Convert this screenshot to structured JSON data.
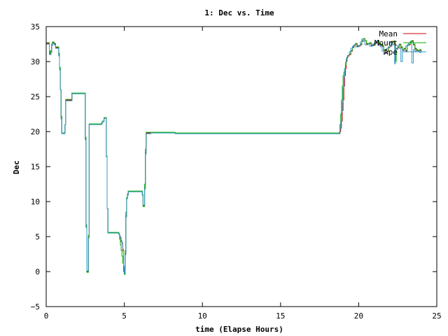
{
  "chart_data": {
    "type": "line",
    "title": "1: Dec vs. Time",
    "xlabel": "time (Elapse Hours)",
    "ylabel": "Dec",
    "xlim": [
      0,
      25
    ],
    "ylim": [
      -5,
      35
    ],
    "xticks": [
      0,
      5,
      10,
      15,
      20,
      25
    ],
    "yticks": [
      -5,
      0,
      5,
      10,
      15,
      20,
      25,
      30,
      35
    ],
    "xtick_labels": [
      "0",
      "5",
      "10",
      "15",
      "20",
      "25"
    ],
    "ytick_labels": [
      "−5",
      "0",
      "5",
      "10",
      "15",
      "20",
      "25",
      "30",
      "35"
    ],
    "grid": false,
    "legend_position": "top-right",
    "series": [
      {
        "name": "Mean",
        "color": "#cc0000",
        "x": [
          0,
          0.1,
          0.2,
          0.25,
          0.3,
          0.35,
          0.4,
          0.5,
          0.6,
          0.7,
          0.8,
          0.85,
          0.9,
          0.95,
          1.0,
          1.05,
          1.1,
          1.15,
          1.2,
          1.25,
          1.3,
          1.35,
          1.6,
          1.65,
          2.4,
          2.45,
          2.5,
          2.55,
          2.6,
          2.65,
          2.7,
          2.75,
          2.8,
          3.5,
          3.55,
          3.6,
          3.65,
          3.7,
          3.75,
          3.8,
          3.85,
          3.9,
          3.95,
          4.0,
          4.05,
          4.6,
          4.65,
          4.7,
          4.75,
          4.8,
          4.85,
          4.9,
          4.95,
          5.0,
          5.05,
          5.1,
          5.15,
          5.2,
          5.25,
          5.3,
          5.35,
          5.4,
          5.5,
          5.55,
          6.1,
          6.15,
          6.2,
          6.25,
          6.3,
          6.35,
          6.4,
          6.45,
          6.5,
          6.55,
          6.6,
          6.65,
          6.7,
          8.2,
          8.25,
          12.1,
          12.15,
          18.7,
          18.75,
          18.8,
          18.85,
          18.9,
          18.95,
          19.0,
          19.05,
          19.1,
          19.15,
          19.2,
          19.25,
          19.3,
          19.4,
          19.5,
          19.6,
          19.7,
          19.8,
          19.9,
          20.0,
          20.1,
          20.2,
          20.3,
          20.4,
          20.5,
          20.6,
          20.7,
          20.8,
          20.9,
          21.0,
          21.1,
          21.2,
          21.3,
          21.4,
          21.5,
          21.6,
          21.7,
          21.8,
          21.9,
          22.0,
          22.1,
          22.2,
          22.3,
          22.35,
          22.4,
          22.5,
          22.6,
          22.7,
          22.8,
          22.9,
          23.0,
          23.1,
          23.2,
          23.3,
          23.4,
          23.5,
          23.6,
          23.7,
          23.8,
          23.9,
          24.0
        ],
        "y": [
          32.6,
          32.6,
          31.2,
          31.0,
          31.4,
          32.4,
          32.7,
          32.5,
          32.0,
          32.0,
          31.0,
          29.0,
          26.0,
          22.0,
          19.8,
          19.8,
          19.8,
          19.8,
          21.0,
          24.5,
          24.5,
          24.5,
          24.5,
          25.5,
          25.5,
          25.5,
          19.0,
          6.5,
          0.0,
          0.0,
          5.0,
          21.0,
          21.0,
          21.0,
          21.3,
          21.5,
          21.5,
          22.0,
          22.0,
          22.0,
          16.5,
          9.0,
          5.5,
          5.5,
          5.5,
          5.5,
          5.3,
          5.0,
          4.8,
          4.3,
          4.0,
          3.0,
          0.5,
          -0.3,
          2.5,
          8.0,
          10.5,
          11.0,
          11.5,
          11.5,
          11.5,
          11.5,
          11.5,
          11.5,
          11.5,
          11.0,
          9.4,
          9.4,
          12.0,
          17.0,
          19.8,
          19.8,
          19.8,
          19.8,
          19.8,
          19.8,
          19.9,
          19.9,
          19.8,
          19.8,
          19.7,
          19.7,
          19.7,
          20.0,
          20.5,
          21.5,
          23.0,
          24.5,
          26.5,
          28.0,
          29.0,
          30.0,
          30.5,
          30.8,
          31.0,
          31.5,
          32.0,
          32.3,
          32.5,
          32.2,
          32.2,
          32.4,
          32.9,
          33.3,
          33.0,
          32.5,
          32.5,
          32.6,
          32.3,
          32.3,
          32.6,
          32.8,
          33.0,
          32.5,
          32.4,
          32.2,
          31.6,
          31.2,
          31.4,
          32.0,
          32.2,
          32.8,
          32.8,
          32.5,
          30.2,
          31.8,
          32.0,
          32.4,
          32.0,
          31.6,
          31.8,
          31.5,
          32.3,
          32.4,
          32.8,
          32.9,
          32.4,
          31.8,
          31.6,
          31.5,
          31.6,
          31.4
        ]
      },
      {
        "name": "Mount",
        "color": "#00aa00",
        "x": [
          0,
          0.1,
          0.2,
          0.25,
          0.3,
          0.35,
          0.4,
          0.5,
          0.6,
          0.7,
          0.8,
          0.85,
          0.9,
          0.95,
          1.0,
          1.05,
          1.1,
          1.15,
          1.2,
          1.25,
          1.3,
          1.35,
          1.6,
          1.65,
          2.4,
          2.45,
          2.5,
          2.55,
          2.6,
          2.65,
          2.7,
          2.75,
          2.8,
          3.5,
          3.55,
          3.6,
          3.65,
          3.7,
          3.75,
          3.8,
          3.85,
          3.9,
          3.95,
          4.0,
          4.05,
          4.6,
          4.65,
          4.7,
          4.75,
          4.8,
          4.85,
          4.9,
          4.95,
          5.0,
          5.05,
          5.1,
          5.15,
          5.2,
          5.25,
          5.3,
          5.35,
          5.4,
          5.5,
          5.55,
          6.1,
          6.15,
          6.2,
          6.25,
          6.3,
          6.35,
          6.4,
          6.45,
          6.5,
          6.55,
          6.6,
          6.65,
          6.7,
          8.2,
          8.25,
          12.1,
          12.15,
          18.7,
          18.75,
          18.8,
          18.85,
          18.9,
          18.95,
          19.0,
          19.05,
          19.1,
          19.15,
          19.2,
          19.25,
          19.3,
          19.4,
          19.5,
          19.6,
          19.7,
          19.8,
          19.9,
          20.0,
          20.1,
          20.2,
          20.3,
          20.4,
          20.5,
          20.6,
          20.7,
          20.8,
          20.9,
          21.0,
          21.1,
          21.2,
          21.3,
          21.4,
          21.5,
          21.6,
          21.7,
          21.8,
          21.9,
          22.0,
          22.1,
          22.2,
          22.3,
          22.35,
          22.4,
          22.5,
          22.6,
          22.7,
          22.8,
          22.9,
          23.0,
          23.1,
          23.2,
          23.3,
          23.4,
          23.5,
          23.6,
          23.7,
          23.8,
          23.9,
          24.0
        ],
        "y": [
          32.7,
          32.7,
          31.5,
          31.2,
          31.6,
          32.5,
          32.8,
          32.6,
          32.1,
          32.1,
          31.2,
          29.2,
          26.0,
          22.2,
          19.8,
          19.8,
          19.8,
          19.8,
          21.0,
          24.6,
          24.6,
          24.6,
          24.6,
          25.5,
          25.5,
          25.5,
          19.2,
          6.3,
          -0.1,
          -0.1,
          5.2,
          21.1,
          21.1,
          21.1,
          21.3,
          21.5,
          21.5,
          22.0,
          22.0,
          22.0,
          16.5,
          9.0,
          5.6,
          5.6,
          5.6,
          5.6,
          5.4,
          4.6,
          3.8,
          3.0,
          2.2,
          1.2,
          0.0,
          -0.4,
          3.0,
          8.5,
          10.6,
          11.1,
          11.5,
          11.5,
          11.5,
          11.5,
          11.5,
          11.5,
          11.5,
          11.0,
          9.3,
          9.3,
          12.5,
          17.5,
          19.9,
          19.9,
          19.9,
          19.9,
          19.9,
          19.9,
          19.9,
          19.9,
          19.8,
          19.8,
          19.8,
          19.8,
          19.8,
          21.0,
          22.5,
          24.5,
          26.5,
          28.0,
          28.5,
          29.0,
          29.5,
          30.2,
          30.6,
          30.9,
          31.1,
          31.6,
          32.1,
          32.4,
          32.6,
          32.3,
          32.3,
          32.5,
          33.0,
          33.3,
          33.0,
          32.6,
          32.6,
          32.7,
          32.4,
          32.4,
          32.7,
          32.9,
          33.0,
          32.6,
          32.5,
          32.3,
          31.7,
          31.3,
          31.5,
          32.1,
          32.3,
          32.9,
          32.9,
          32.6,
          30.0,
          31.9,
          32.1,
          32.5,
          32.1,
          31.7,
          31.9,
          31.6,
          32.4,
          32.5,
          32.9,
          33.0,
          32.5,
          31.9,
          31.7,
          31.6,
          31.7,
          31.5
        ]
      },
      {
        "name": "Ape",
        "color": "#3399cc",
        "x": [
          0,
          0.1,
          0.2,
          0.25,
          0.3,
          0.35,
          0.4,
          0.5,
          0.6,
          0.7,
          0.8,
          0.85,
          0.9,
          0.95,
          1.0,
          1.05,
          1.1,
          1.15,
          1.2,
          1.25,
          1.3,
          1.35,
          1.6,
          1.65,
          2.4,
          2.45,
          2.5,
          2.55,
          2.6,
          2.65,
          2.7,
          2.75,
          2.8,
          3.5,
          3.55,
          3.6,
          3.65,
          3.7,
          3.75,
          3.8,
          3.85,
          3.9,
          3.95,
          4.0,
          4.05,
          4.6,
          4.65,
          4.7,
          4.75,
          4.8,
          4.85,
          4.9,
          4.95,
          5.0,
          5.05,
          5.1,
          5.15,
          5.2,
          5.25,
          5.3,
          5.35,
          5.4,
          5.5,
          5.55,
          6.1,
          6.15,
          6.2,
          6.25,
          6.3,
          6.35,
          6.4,
          6.45,
          6.5,
          6.55,
          6.6,
          6.65,
          6.7,
          8.2,
          8.25,
          18.7,
          18.75,
          18.8,
          18.85,
          18.9,
          18.95,
          19.0,
          19.05,
          19.1,
          19.15,
          19.2,
          19.25,
          19.3,
          19.4,
          19.5,
          19.6,
          19.7,
          19.8,
          19.9,
          20.0,
          20.1,
          20.2,
          20.3,
          20.4,
          20.5,
          20.6,
          20.7,
          20.8,
          20.9,
          21.0,
          21.1,
          21.2,
          21.3,
          21.4,
          21.5,
          21.6,
          21.7,
          21.8,
          21.9,
          22.0,
          22.1,
          22.2,
          22.3,
          22.35,
          22.4,
          22.5,
          22.6,
          22.7,
          22.8,
          22.9,
          23.0,
          23.1,
          23.2,
          23.3,
          23.4,
          23.5,
          23.6,
          23.7,
          23.8,
          23.9,
          24.0
        ],
        "y": [
          32.5,
          32.5,
          31.0,
          31.0,
          31.3,
          32.3,
          32.6,
          32.4,
          31.9,
          31.9,
          30.8,
          28.8,
          26.0,
          21.8,
          19.7,
          19.7,
          19.7,
          19.7,
          21.0,
          24.4,
          24.4,
          24.4,
          24.4,
          25.4,
          25.4,
          25.4,
          18.8,
          6.7,
          0.1,
          0.1,
          4.8,
          21.0,
          21.0,
          21.0,
          21.2,
          21.4,
          21.4,
          21.9,
          21.9,
          21.9,
          16.4,
          9.0,
          5.5,
          5.5,
          5.5,
          5.5,
          5.3,
          5.1,
          4.9,
          4.4,
          4.1,
          3.2,
          0.8,
          -0.2,
          2.4,
          7.8,
          10.4,
          10.9,
          11.4,
          11.4,
          11.4,
          11.4,
          11.4,
          11.4,
          11.4,
          10.9,
          9.5,
          9.5,
          11.8,
          16.8,
          19.7,
          19.7,
          19.7,
          19.7,
          19.7,
          19.7,
          19.8,
          19.8,
          19.7,
          19.7,
          19.9,
          20.4,
          21.4,
          22.8,
          24.3,
          26.3,
          27.8,
          28.9,
          29.9,
          30.4,
          30.7,
          30.9,
          31.4,
          31.9,
          32.2,
          32.4,
          32.1,
          32.1,
          32.3,
          32.8,
          33.2,
          32.9,
          32.4,
          32.4,
          32.5,
          32.2,
          32.2,
          32.5,
          32.7,
          32.9,
          32.4,
          32.3,
          32.1,
          31.5,
          31.1,
          31.3,
          31.9,
          32.1,
          32.7,
          32.7,
          32.4,
          29.7,
          31.7,
          31.9,
          32.3,
          31.9,
          30.0,
          31.7,
          31.4,
          32.2,
          32.3,
          32.7,
          32.8,
          29.8,
          31.7,
          31.5,
          31.4,
          31.5,
          31.3,
          31.3
        ]
      }
    ]
  }
}
